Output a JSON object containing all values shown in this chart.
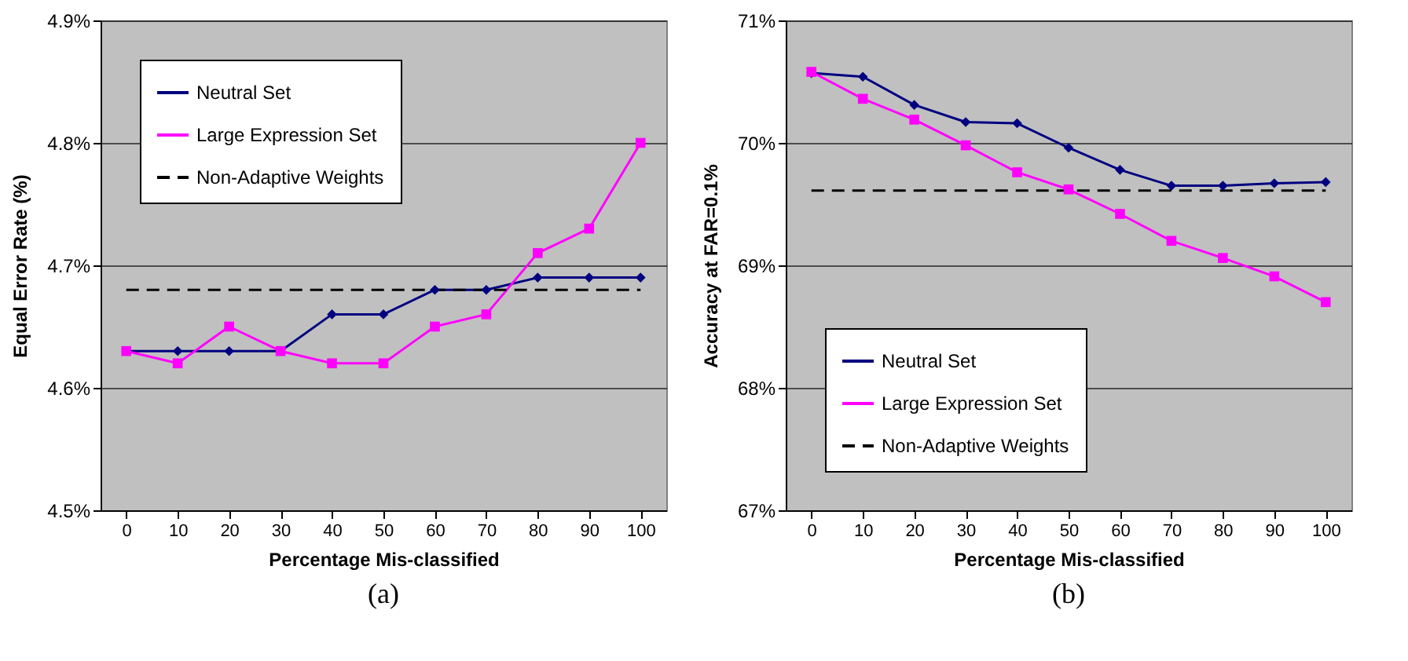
{
  "chart_data": [
    {
      "type": "line",
      "title": "(a)",
      "xlabel": "Percentage Mis-classified",
      "ylabel": "Equal Error Rate (%)",
      "categories": [
        "0",
        "10",
        "20",
        "30",
        "40",
        "50",
        "60",
        "70",
        "80",
        "90",
        "100"
      ],
      "series": [
        {
          "name": "Neutral Set",
          "color": "#000080",
          "marker": "diamond",
          "line_style": "solid",
          "values": [
            4.63,
            4.63,
            4.63,
            4.63,
            4.66,
            4.66,
            4.68,
            4.68,
            4.69,
            4.69,
            4.69
          ]
        },
        {
          "name": "Large Expression Set",
          "color": "#ff00ff",
          "marker": "square",
          "line_style": "solid",
          "values": [
            4.63,
            4.62,
            4.65,
            4.63,
            4.62,
            4.62,
            4.65,
            4.66,
            4.71,
            4.73,
            4.8
          ]
        },
        {
          "name": "Non-Adaptive Weights",
          "color": "#000000",
          "marker": "none",
          "line_style": "dashed",
          "values": [
            4.68,
            4.68,
            4.68,
            4.68,
            4.68,
            4.68,
            4.68,
            4.68,
            4.68,
            4.68,
            4.68
          ]
        }
      ],
      "ylim": [
        4.5,
        4.9
      ],
      "yticks": [
        {
          "value": 4.5,
          "label": "4.5%"
        },
        {
          "value": 4.6,
          "label": "4.6%"
        },
        {
          "value": 4.7,
          "label": "4.7%"
        },
        {
          "value": 4.8,
          "label": "4.8%"
        },
        {
          "value": 4.9,
          "label": "4.9%"
        }
      ],
      "grid": "y",
      "legend": "top left"
    },
    {
      "type": "line",
      "title": "(b)",
      "xlabel": "Percentage Mis-classified",
      "ylabel": "Accuracy at FAR=0.1%",
      "categories": [
        "0",
        "10",
        "20",
        "30",
        "40",
        "50",
        "60",
        "70",
        "80",
        "90",
        "100"
      ],
      "series": [
        {
          "name": "Neutral Set",
          "color": "#000080",
          "marker": "diamond",
          "line_style": "solid",
          "values": [
            70.57,
            70.54,
            70.31,
            70.17,
            70.16,
            69.96,
            69.78,
            69.65,
            69.65,
            69.67,
            69.68
          ]
        },
        {
          "name": "Large Expression Set",
          "color": "#ff00ff",
          "marker": "square",
          "line_style": "solid",
          "values": [
            70.58,
            70.36,
            70.19,
            69.98,
            69.76,
            69.62,
            69.42,
            69.2,
            69.06,
            68.91,
            68.7
          ]
        },
        {
          "name": "Non-Adaptive Weights",
          "color": "#000000",
          "marker": "none",
          "line_style": "dashed",
          "values": [
            69.61,
            69.61,
            69.61,
            69.61,
            69.61,
            69.61,
            69.61,
            69.61,
            69.61,
            69.61,
            69.61
          ]
        }
      ],
      "ylim": [
        67,
        71
      ],
      "yticks": [
        {
          "value": 67,
          "label": "67%"
        },
        {
          "value": 68,
          "label": "68%"
        },
        {
          "value": 69,
          "label": "69%"
        },
        {
          "value": 70,
          "label": "70%"
        },
        {
          "value": 71,
          "label": "71%"
        }
      ],
      "grid": "y",
      "legend": "bottom left"
    }
  ]
}
